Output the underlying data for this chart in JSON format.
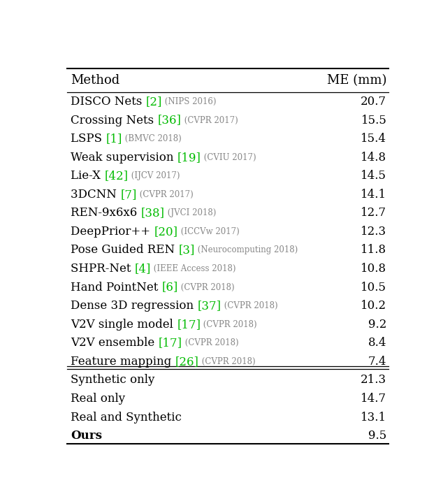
{
  "title_col1": "Method",
  "title_col2": "ME (mm)",
  "rows_section1": [
    {
      "name": "DISCO Nets ",
      "ref": "[2]",
      "venue": " (NIPS 2016)",
      "value": "20.7"
    },
    {
      "name": "Crossing Nets ",
      "ref": "[36]",
      "venue": " (CVPR 2017)",
      "value": "15.5"
    },
    {
      "name": "LSPS ",
      "ref": "[1]",
      "venue": " (BMVC 2018)",
      "value": "15.4"
    },
    {
      "name": "Weak supervision ",
      "ref": "[19]",
      "venue": " (CVIU 2017)",
      "value": "14.8"
    },
    {
      "name": "Lie-X ",
      "ref": "[42]",
      "venue": " (IJCV 2017)",
      "value": "14.5"
    },
    {
      "name": "3DCNN ",
      "ref": "[7]",
      "venue": " (CVPR 2017)",
      "value": "14.1"
    },
    {
      "name": "REN-9x6x6 ",
      "ref": "[38]",
      "venue": " (JVCI 2018)",
      "value": "12.7"
    },
    {
      "name": "DeepPrior++ ",
      "ref": "[20]",
      "venue": " (ICCVw 2017)",
      "value": "12.3"
    },
    {
      "name": "Pose Guided REN ",
      "ref": "[3]",
      "venue": " (Neurocomputing 2018)",
      "value": "11.8"
    },
    {
      "name": "SHPR-Net ",
      "ref": "[4]",
      "venue": " (IEEE Access 2018)",
      "value": "10.8"
    },
    {
      "name": "Hand PointNet ",
      "ref": "[6]",
      "venue": " (CVPR 2018)",
      "value": "10.5"
    },
    {
      "name": "Dense 3D regression ",
      "ref": "[37]",
      "venue": " (CVPR 2018)",
      "value": "10.2"
    },
    {
      "name": "V2V single model ",
      "ref": "[17]",
      "venue": " (CVPR 2018)",
      "value": "9.2"
    },
    {
      "name": "V2V ensemble ",
      "ref": "[17]",
      "venue": " (CVPR 2018)",
      "value": "8.4"
    },
    {
      "name": "Feature mapping ",
      "ref": "[26]",
      "venue": " (CVPR 2018)",
      "value": "7.4"
    }
  ],
  "rows_section2": [
    {
      "name": "Synthetic only",
      "value": "21.3",
      "bold": false
    },
    {
      "name": "Real only",
      "value": "14.7",
      "bold": false
    },
    {
      "name": "Real and Synthetic",
      "value": "13.1",
      "bold": false
    },
    {
      "name": "Ours",
      "value": "9.5",
      "bold": true
    }
  ],
  "green_color": "#00bb00",
  "gray_color": "#888888",
  "black_color": "#000000",
  "bg_color": "#ffffff",
  "main_fontsize": 12.0,
  "venue_fontsize": 8.5,
  "header_fontsize": 13.0,
  "fig_width": 6.34,
  "fig_height": 7.04,
  "dpi": 100
}
